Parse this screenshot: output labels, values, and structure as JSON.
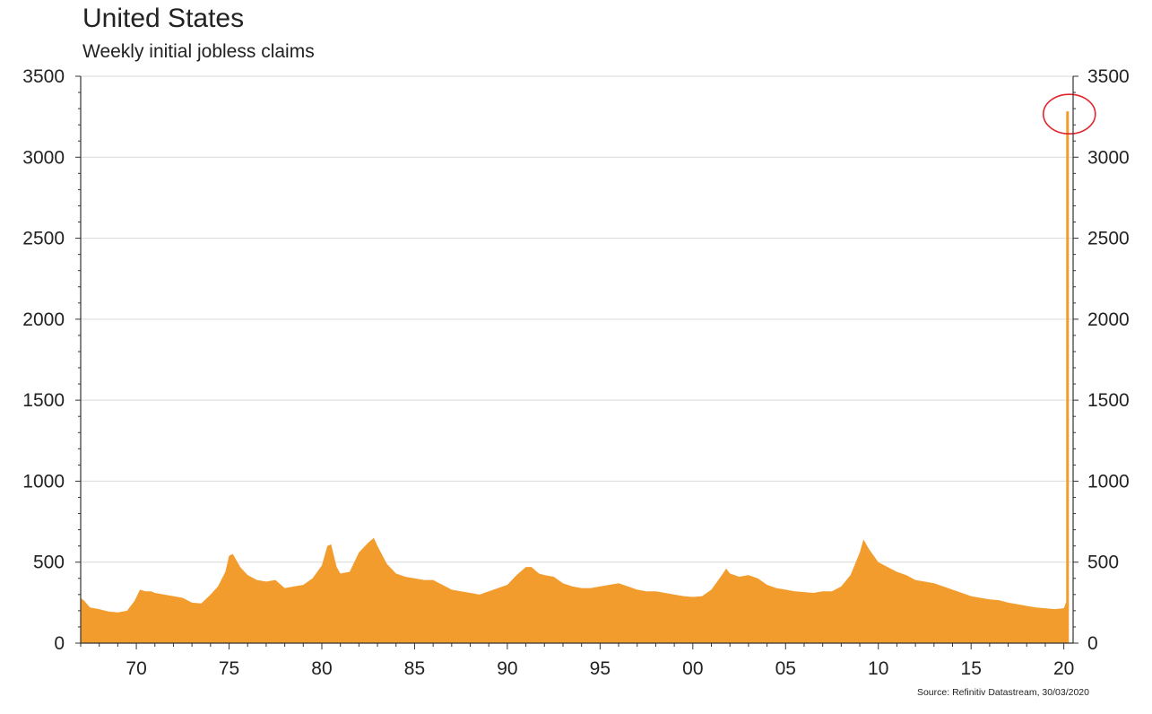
{
  "title": "United States",
  "subtitle": "Weekly initial jobless claims",
  "source": "Source: Refinitiv Datastream, 30/03/2020",
  "chart_data": {
    "type": "area",
    "ylim": [
      0,
      3500
    ],
    "xlim": [
      1967,
      2020.5
    ],
    "y_ticks": [
      "0",
      "500",
      "1000",
      "1500",
      "2000",
      "2500",
      "3000",
      "3500"
    ],
    "y_tick_values": [
      0,
      500,
      1000,
      1500,
      2000,
      2500,
      3000,
      3500
    ],
    "x_ticks": [
      "70",
      "75",
      "80",
      "85",
      "90",
      "95",
      "00",
      "05",
      "10",
      "15",
      "20"
    ],
    "x_tick_values": [
      1970,
      1975,
      1980,
      1985,
      1990,
      1995,
      2000,
      2005,
      2010,
      2015,
      2020
    ],
    "grid": true,
    "colors": {
      "area": "#F39C2E",
      "highlight_circle": "#E0252B",
      "grid": "#d9d9d9"
    },
    "series": [
      {
        "x": [
          1967.0,
          1967.2,
          1967.5,
          1968.0,
          1968.5,
          1969.0,
          1969.5,
          1969.9,
          1970.2,
          1970.5,
          1970.8,
          1971.0,
          1971.5,
          1972.0,
          1972.5,
          1973.0,
          1973.5,
          1974.0,
          1974.4,
          1974.8,
          1975.0,
          1975.2,
          1975.6,
          1976.0,
          1976.5,
          1977.0,
          1977.5,
          1978.0,
          1978.5,
          1979.0,
          1979.5,
          1980.0,
          1980.3,
          1980.5,
          1980.8,
          1981.0,
          1981.5,
          1982.0,
          1982.5,
          1982.8,
          1983.0,
          1983.5,
          1984.0,
          1984.5,
          1985.0,
          1985.5,
          1986.0,
          1986.5,
          1987.0,
          1987.5,
          1988.0,
          1988.5,
          1989.0,
          1989.5,
          1990.0,
          1990.5,
          1991.0,
          1991.3,
          1991.7,
          1992.0,
          1992.5,
          1993.0,
          1993.5,
          1994.0,
          1994.5,
          1995.0,
          1995.5,
          1996.0,
          1996.5,
          1997.0,
          1997.5,
          1998.0,
          1998.5,
          1999.0,
          1999.5,
          2000.0,
          2000.5,
          2001.0,
          2001.5,
          2001.8,
          2002.0,
          2002.5,
          2003.0,
          2003.5,
          2004.0,
          2004.5,
          2005.0,
          2005.5,
          2006.0,
          2006.5,
          2007.0,
          2007.5,
          2008.0,
          2008.5,
          2009.0,
          2009.2,
          2009.5,
          2010.0,
          2010.5,
          2011.0,
          2011.5,
          2012.0,
          2012.5,
          2013.0,
          2013.5,
          2014.0,
          2014.5,
          2015.0,
          2015.5,
          2016.0,
          2016.5,
          2017.0,
          2017.5,
          2018.0,
          2018.5,
          2019.0,
          2019.5,
          2020.0,
          2020.15,
          2020.2
        ],
        "y": [
          280,
          260,
          220,
          210,
          195,
          190,
          200,
          260,
          330,
          320,
          320,
          310,
          300,
          290,
          280,
          250,
          245,
          300,
          350,
          440,
          540,
          550,
          470,
          420,
          390,
          380,
          390,
          340,
          350,
          360,
          400,
          480,
          600,
          610,
          470,
          430,
          440,
          560,
          620,
          650,
          600,
          490,
          430,
          410,
          400,
          390,
          390,
          360,
          330,
          320,
          310,
          300,
          320,
          340,
          360,
          420,
          470,
          470,
          430,
          420,
          410,
          370,
          350,
          340,
          340,
          350,
          360,
          370,
          350,
          330,
          320,
          320,
          310,
          300,
          290,
          285,
          290,
          330,
          410,
          460,
          430,
          410,
          420,
          400,
          360,
          340,
          330,
          320,
          315,
          310,
          320,
          320,
          350,
          420,
          560,
          640,
          580,
          500,
          470,
          440,
          420,
          390,
          380,
          370,
          350,
          330,
          310,
          290,
          280,
          270,
          265,
          250,
          240,
          230,
          220,
          215,
          210,
          215,
          260,
          3283
        ]
      }
    ],
    "annotations": [
      "red circle highlighting the 2020 spike peak"
    ]
  }
}
